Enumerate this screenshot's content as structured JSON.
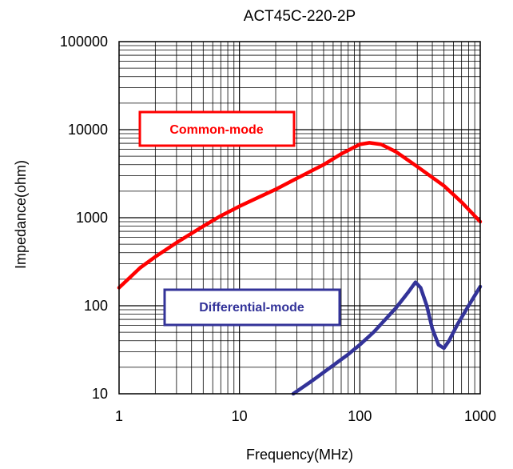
{
  "chart_data": {
    "type": "line",
    "title": "ACT45C-220-2P",
    "xlabel": "Frequency(MHz)",
    "ylabel": "Impedance(ohm)",
    "xscale": "log",
    "yscale": "log",
    "xlim": [
      1,
      1000
    ],
    "ylim": [
      10,
      100000
    ],
    "x_ticks": [
      "1",
      "10",
      "100",
      "1000"
    ],
    "y_ticks": [
      "10",
      "100",
      "1000",
      "10000",
      "100000"
    ],
    "grid": true,
    "series": [
      {
        "name": "Common-mode",
        "color": "#ff0000",
        "x": [
          1,
          1.5,
          2,
          3,
          5,
          7,
          10,
          15,
          20,
          30,
          50,
          70,
          100,
          120,
          150,
          200,
          300,
          500,
          700,
          1000
        ],
        "y": [
          160,
          270,
          360,
          520,
          800,
          1050,
          1350,
          1750,
          2100,
          2800,
          4000,
          5300,
          6800,
          7100,
          6800,
          5600,
          3800,
          2300,
          1500,
          900
        ]
      },
      {
        "name": "Differential-mode",
        "color": "#333399",
        "x": [
          28,
          40,
          60,
          80,
          100,
          130,
          160,
          200,
          250,
          290,
          320,
          360,
          400,
          450,
          500,
          550,
          650,
          800,
          1000
        ],
        "y": [
          10,
          14,
          21,
          28,
          36,
          50,
          68,
          95,
          140,
          185,
          160,
          100,
          55,
          36,
          33,
          40,
          62,
          100,
          165
        ]
      }
    ],
    "annotations": [
      {
        "text": "Common-mode",
        "color": "#ff0000"
      },
      {
        "text": "Differential-mode",
        "color": "#333399"
      }
    ]
  }
}
